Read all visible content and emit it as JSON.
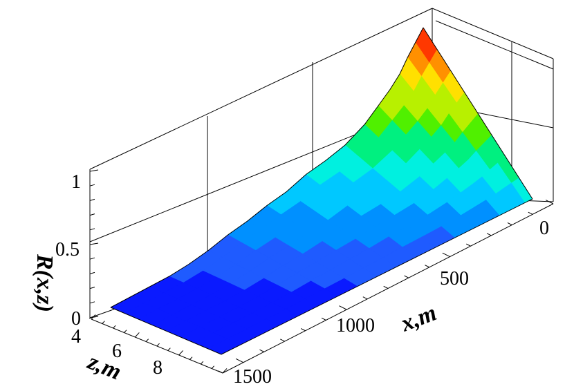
{
  "chart_data": {
    "type": "surface",
    "x_axis": {
      "label": "x,m",
      "ticks": [
        0,
        500,
        1000,
        1500
      ],
      "range": [
        0,
        1700
      ]
    },
    "z_axis": {
      "label": "z,m",
      "ticks": [
        4,
        6,
        8
      ],
      "range": [
        3,
        10
      ]
    },
    "y_axis": {
      "label": "R(x,z)",
      "ticks": [
        "0",
        "0.5",
        "1"
      ],
      "range": [
        0,
        1.1
      ]
    },
    "ridge_profile": {
      "x": [
        0,
        40,
        80,
        120,
        170,
        230,
        300,
        400,
        500,
        600,
        700,
        800,
        900,
        1000,
        1100,
        1200,
        1300,
        1400,
        1500,
        1600
      ],
      "r": [
        1.0,
        0.93,
        0.86,
        0.78,
        0.71,
        0.64,
        0.56,
        0.48,
        0.43,
        0.39,
        0.33,
        0.29,
        0.24,
        0.2,
        0.15,
        0.11,
        0.08,
        0.06,
        0.04,
        0.02
      ]
    },
    "grid": true,
    "colormap": [
      "#0a1aff",
      "#1f5bff",
      "#0090ff",
      "#00c8ff",
      "#00f0e0",
      "#00f080",
      "#50f000",
      "#b8f000",
      "#ffe000",
      "#ff9000",
      "#ff3800"
    ]
  }
}
